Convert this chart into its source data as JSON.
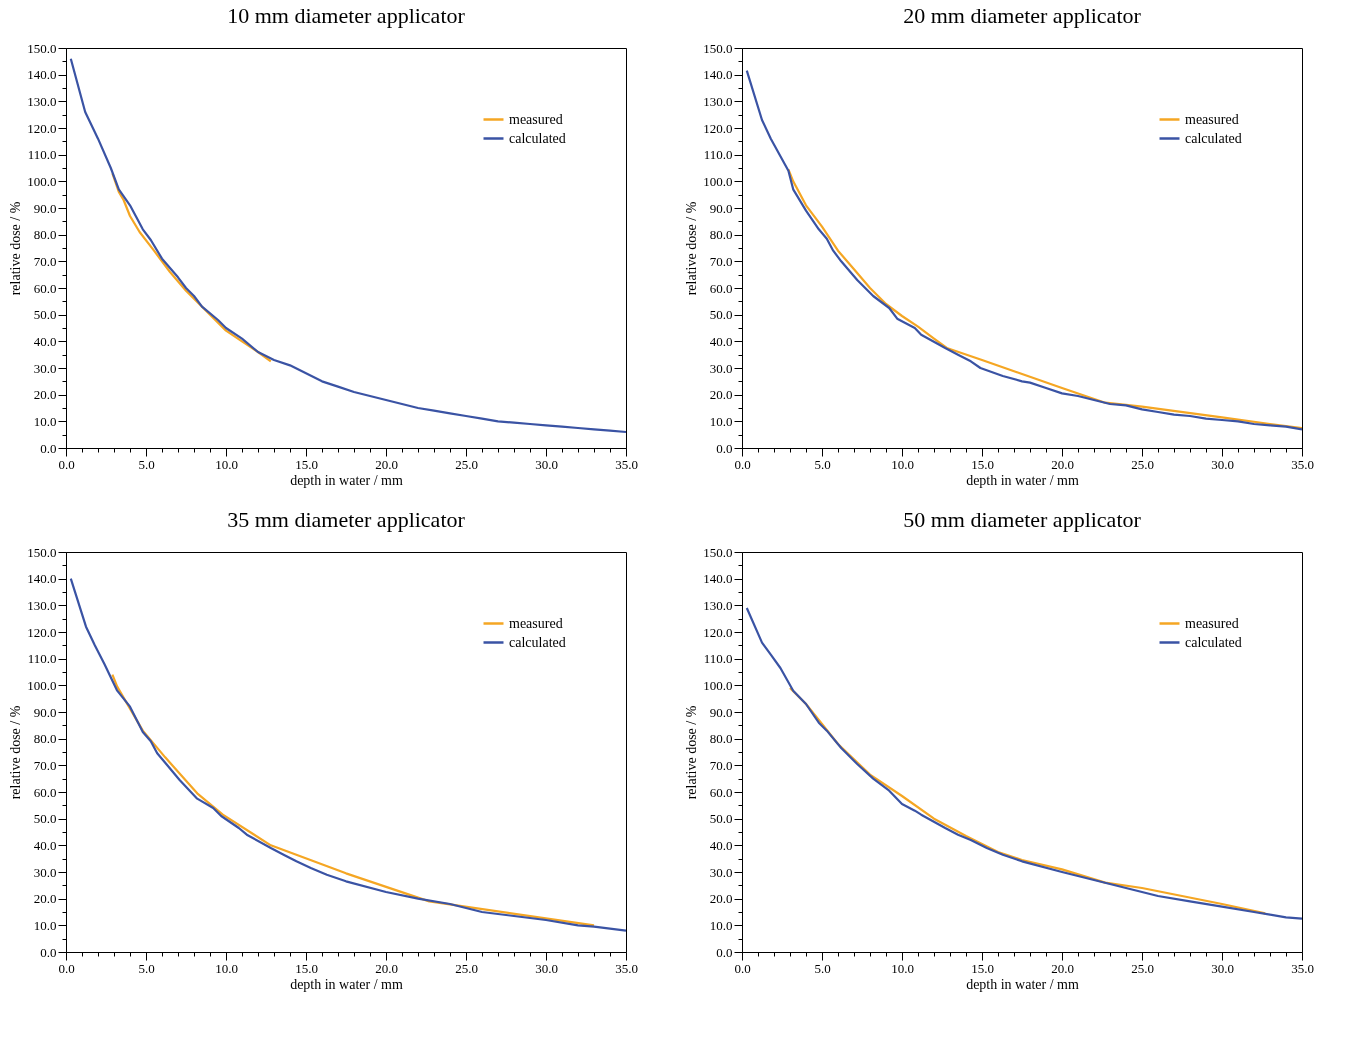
{
  "chart_data": [
    {
      "type": "line",
      "title": "10 mm diameter applicator",
      "xlabel": "depth in water / mm",
      "ylabel": "relative dose / %",
      "xlim": [
        0,
        35
      ],
      "ylim": [
        0,
        150
      ],
      "grid": false,
      "legend": "top right",
      "xticks": [
        {
          "value": 0,
          "label": "0.0"
        },
        {
          "value": 1,
          "label": null
        },
        {
          "value": 2,
          "label": null
        },
        {
          "value": 3,
          "label": null
        },
        {
          "value": 4,
          "label": null
        },
        {
          "value": 5,
          "label": "5.0"
        },
        {
          "value": 6,
          "label": null
        },
        {
          "value": 7,
          "label": null
        },
        {
          "value": 8,
          "label": null
        },
        {
          "value": 9,
          "label": null
        },
        {
          "value": 10,
          "label": "10.0"
        },
        {
          "value": 11,
          "label": null
        },
        {
          "value": 12,
          "label": null
        },
        {
          "value": 13,
          "label": null
        },
        {
          "value": 14,
          "label": null
        },
        {
          "value": 15,
          "label": "15.0"
        },
        {
          "value": 16,
          "label": null
        },
        {
          "value": 17,
          "label": null
        },
        {
          "value": 18,
          "label": null
        },
        {
          "value": 19,
          "label": null
        },
        {
          "value": 20,
          "label": "20.0"
        },
        {
          "value": 21,
          "label": null
        },
        {
          "value": 22,
          "label": null
        },
        {
          "value": 23,
          "label": null
        },
        {
          "value": 24,
          "label": null
        },
        {
          "value": 25,
          "label": "25.0"
        },
        {
          "value": 26,
          "label": null
        },
        {
          "value": 27,
          "label": null
        },
        {
          "value": 28,
          "label": null
        },
        {
          "value": 29,
          "label": null
        },
        {
          "value": 30,
          "label": "30.0"
        },
        {
          "value": 31,
          "label": null
        },
        {
          "value": 32,
          "label": null
        },
        {
          "value": 33,
          "label": null
        },
        {
          "value": 34,
          "label": null
        },
        {
          "value": 35,
          "label": "35.0"
        }
      ],
      "yticks": [
        {
          "value": 0,
          "label": "0.0"
        },
        {
          "value": 5,
          "label": null
        },
        {
          "value": 10,
          "label": "10.0"
        },
        {
          "value": 15,
          "label": null
        },
        {
          "value": 20,
          "label": "20.0"
        },
        {
          "value": 25,
          "label": null
        },
        {
          "value": 30,
          "label": "30.0"
        },
        {
          "value": 35,
          "label": null
        },
        {
          "value": 40,
          "label": "40.0"
        },
        {
          "value": 45,
          "label": null
        },
        {
          "value": 50,
          "label": "50.0"
        },
        {
          "value": 55,
          "label": null
        },
        {
          "value": 60,
          "label": "60.0"
        },
        {
          "value": 65,
          "label": null
        },
        {
          "value": 70,
          "label": "70.0"
        },
        {
          "value": 75,
          "label": null
        },
        {
          "value": 80,
          "label": "80.0"
        },
        {
          "value": 85,
          "label": null
        },
        {
          "value": 90,
          "label": "90.0"
        },
        {
          "value": 95,
          "label": null
        },
        {
          "value": 100,
          "label": "100.0"
        },
        {
          "value": 105,
          "label": null
        },
        {
          "value": 110,
          "label": "110.0"
        },
        {
          "value": 115,
          "label": null
        },
        {
          "value": 120,
          "label": "120.0"
        },
        {
          "value": 125,
          "label": null
        },
        {
          "value": 130,
          "label": "130.0"
        },
        {
          "value": 135,
          "label": null
        },
        {
          "value": 140,
          "label": "140.0"
        },
        {
          "value": 145,
          "label": null
        },
        {
          "value": 150,
          "label": "150.0"
        }
      ],
      "series": [
        {
          "name": "measured",
          "color": "#f5a623",
          "x": [
            2.9,
            3.3,
            3.6,
            4,
            4.6,
            5.5,
            6.5,
            7.5,
            8.5,
            9.5,
            10,
            11,
            12,
            12.8
          ],
          "values": [
            103,
            96,
            93,
            87,
            81,
            74,
            66,
            59,
            53,
            47,
            44,
            40,
            36,
            32.5
          ]
        },
        {
          "name": "calculated",
          "color": "#3a53a4",
          "x": [
            0.3,
            1.2,
            2,
            2.8,
            3.3,
            4,
            4.8,
            5.3,
            6,
            7,
            7.5,
            8,
            8.5,
            9.5,
            10,
            11,
            12,
            13,
            14,
            15,
            16,
            17,
            18,
            19,
            20,
            21,
            22,
            23,
            24,
            25,
            26,
            27,
            28,
            29,
            30,
            31,
            32,
            33,
            34,
            35
          ],
          "values": [
            146,
            126,
            116,
            105,
            97,
            91,
            82,
            78,
            71,
            64,
            60,
            57,
            53,
            48,
            45,
            41,
            36,
            33,
            31,
            28,
            25,
            23,
            21,
            19.5,
            18,
            16.5,
            15,
            14,
            13,
            12,
            11,
            10,
            9.5,
            9,
            8.5,
            8,
            7.5,
            7,
            6.5,
            6
          ]
        }
      ]
    },
    {
      "type": "line",
      "title": "20 mm diameter applicator",
      "xlabel": "depth in water / mm",
      "ylabel": "relative dose / %",
      "xlim": [
        0,
        35
      ],
      "ylim": [
        0,
        150
      ],
      "grid": false,
      "legend": "top right",
      "xticks": [
        {
          "value": 0,
          "label": "0.0"
        },
        {
          "value": 1,
          "label": null
        },
        {
          "value": 2,
          "label": null
        },
        {
          "value": 3,
          "label": null
        },
        {
          "value": 4,
          "label": null
        },
        {
          "value": 5,
          "label": "5.0"
        },
        {
          "value": 6,
          "label": null
        },
        {
          "value": 7,
          "label": null
        },
        {
          "value": 8,
          "label": null
        },
        {
          "value": 9,
          "label": null
        },
        {
          "value": 10,
          "label": "10.0"
        },
        {
          "value": 11,
          "label": null
        },
        {
          "value": 12,
          "label": null
        },
        {
          "value": 13,
          "label": null
        },
        {
          "value": 14,
          "label": null
        },
        {
          "value": 15,
          "label": "15.0"
        },
        {
          "value": 16,
          "label": null
        },
        {
          "value": 17,
          "label": null
        },
        {
          "value": 18,
          "label": null
        },
        {
          "value": 19,
          "label": null
        },
        {
          "value": 20,
          "label": "20.0"
        },
        {
          "value": 21,
          "label": null
        },
        {
          "value": 22,
          "label": null
        },
        {
          "value": 23,
          "label": null
        },
        {
          "value": 24,
          "label": null
        },
        {
          "value": 25,
          "label": "25.0"
        },
        {
          "value": 26,
          "label": null
        },
        {
          "value": 27,
          "label": null
        },
        {
          "value": 28,
          "label": null
        },
        {
          "value": 29,
          "label": null
        },
        {
          "value": 30,
          "label": "30.0"
        },
        {
          "value": 31,
          "label": null
        },
        {
          "value": 32,
          "label": null
        },
        {
          "value": 33,
          "label": null
        },
        {
          "value": 34,
          "label": null
        },
        {
          "value": 35,
          "label": "35.0"
        }
      ],
      "yticks": [
        {
          "value": 0,
          "label": "0.0"
        },
        {
          "value": 5,
          "label": null
        },
        {
          "value": 10,
          "label": "10.0"
        },
        {
          "value": 15,
          "label": null
        },
        {
          "value": 20,
          "label": "20.0"
        },
        {
          "value": 25,
          "label": null
        },
        {
          "value": 30,
          "label": "30.0"
        },
        {
          "value": 35,
          "label": null
        },
        {
          "value": 40,
          "label": "40.0"
        },
        {
          "value": 45,
          "label": null
        },
        {
          "value": 50,
          "label": "50.0"
        },
        {
          "value": 55,
          "label": null
        },
        {
          "value": 60,
          "label": "60.0"
        },
        {
          "value": 65,
          "label": null
        },
        {
          "value": 70,
          "label": "70.0"
        },
        {
          "value": 75,
          "label": null
        },
        {
          "value": 80,
          "label": "80.0"
        },
        {
          "value": 85,
          "label": null
        },
        {
          "value": 90,
          "label": "90.0"
        },
        {
          "value": 95,
          "label": null
        },
        {
          "value": 100,
          "label": "100.0"
        },
        {
          "value": 105,
          "label": null
        },
        {
          "value": 110,
          "label": "110.0"
        },
        {
          "value": 115,
          "label": null
        },
        {
          "value": 120,
          "label": "120.0"
        },
        {
          "value": 125,
          "label": null
        },
        {
          "value": 130,
          "label": "130.0"
        },
        {
          "value": 135,
          "label": null
        },
        {
          "value": 140,
          "label": "140.0"
        },
        {
          "value": 145,
          "label": null
        },
        {
          "value": 150,
          "label": "150.0"
        }
      ],
      "series": [
        {
          "name": "measured",
          "color": "#f5a623",
          "x": [
            2.9,
            3.2,
            4,
            5,
            6,
            7,
            8,
            9,
            10,
            11,
            12,
            12.8,
            15,
            20,
            22.7,
            25,
            30,
            33,
            35
          ],
          "values": [
            104.5,
            100,
            91,
            83,
            74,
            67,
            60,
            54,
            49.5,
            45.5,
            41,
            37.5,
            33,
            22.5,
            17,
            15.5,
            11.5,
            9,
            7.5
          ]
        },
        {
          "name": "calculated",
          "color": "#3a53a4",
          "x": [
            0.3,
            1.25,
            1.8,
            2.9,
            3.2,
            4,
            4.8,
            5.3,
            5.7,
            6.2,
            7.2,
            8.2,
            9.2,
            9.7,
            10.8,
            11.2,
            12.7,
            13.5,
            14.3,
            14.9,
            16.3,
            17.5,
            18,
            19,
            20,
            21,
            22,
            23,
            24,
            25,
            26,
            27,
            28,
            29,
            30,
            31,
            32,
            33,
            34,
            35
          ],
          "values": [
            141.5,
            123,
            116,
            104,
            97,
            89,
            82,
            78.5,
            74,
            70,
            63,
            57,
            52.5,
            48.5,
            45,
            42.5,
            37.5,
            35,
            32.5,
            30,
            27,
            25,
            24.5,
            22.5,
            20.5,
            19.5,
            18,
            16.5,
            16,
            14.5,
            13.5,
            12.5,
            12,
            11,
            10.5,
            10,
            9,
            8.5,
            8,
            7
          ]
        }
      ]
    },
    {
      "type": "line",
      "title": "35 mm diameter applicator",
      "xlabel": "depth in water / mm",
      "ylabel": "relative dose / %",
      "xlim": [
        0,
        35
      ],
      "ylim": [
        0,
        150
      ],
      "grid": false,
      "legend": "top right",
      "xticks": [
        {
          "value": 0,
          "label": "0.0"
        },
        {
          "value": 1,
          "label": null
        },
        {
          "value": 2,
          "label": null
        },
        {
          "value": 3,
          "label": null
        },
        {
          "value": 4,
          "label": null
        },
        {
          "value": 5,
          "label": "5.0"
        },
        {
          "value": 6,
          "label": null
        },
        {
          "value": 7,
          "label": null
        },
        {
          "value": 8,
          "label": null
        },
        {
          "value": 9,
          "label": null
        },
        {
          "value": 10,
          "label": "10.0"
        },
        {
          "value": 11,
          "label": null
        },
        {
          "value": 12,
          "label": null
        },
        {
          "value": 13,
          "label": null
        },
        {
          "value": 14,
          "label": null
        },
        {
          "value": 15,
          "label": "15.0"
        },
        {
          "value": 16,
          "label": null
        },
        {
          "value": 17,
          "label": null
        },
        {
          "value": 18,
          "label": null
        },
        {
          "value": 19,
          "label": null
        },
        {
          "value": 20,
          "label": "20.0"
        },
        {
          "value": 21,
          "label": null
        },
        {
          "value": 22,
          "label": null
        },
        {
          "value": 23,
          "label": null
        },
        {
          "value": 24,
          "label": null
        },
        {
          "value": 25,
          "label": "25.0"
        },
        {
          "value": 26,
          "label": null
        },
        {
          "value": 27,
          "label": null
        },
        {
          "value": 28,
          "label": null
        },
        {
          "value": 29,
          "label": null
        },
        {
          "value": 30,
          "label": "30.0"
        },
        {
          "value": 31,
          "label": null
        },
        {
          "value": 32,
          "label": null
        },
        {
          "value": 33,
          "label": null
        },
        {
          "value": 34,
          "label": null
        },
        {
          "value": 35,
          "label": "35.0"
        }
      ],
      "yticks": [
        {
          "value": 0,
          "label": "0.0"
        },
        {
          "value": 5,
          "label": null
        },
        {
          "value": 10,
          "label": "10.0"
        },
        {
          "value": 15,
          "label": null
        },
        {
          "value": 20,
          "label": "20.0"
        },
        {
          "value": 25,
          "label": null
        },
        {
          "value": 30,
          "label": "30.0"
        },
        {
          "value": 35,
          "label": null
        },
        {
          "value": 40,
          "label": "40.0"
        },
        {
          "value": 45,
          "label": null
        },
        {
          "value": 50,
          "label": "50.0"
        },
        {
          "value": 55,
          "label": null
        },
        {
          "value": 60,
          "label": "60.0"
        },
        {
          "value": 65,
          "label": null
        },
        {
          "value": 70,
          "label": "70.0"
        },
        {
          "value": 75,
          "label": null
        },
        {
          "value": 80,
          "label": "80.0"
        },
        {
          "value": 85,
          "label": null
        },
        {
          "value": 90,
          "label": "90.0"
        },
        {
          "value": 95,
          "label": null
        },
        {
          "value": 100,
          "label": "100.0"
        },
        {
          "value": 105,
          "label": null
        },
        {
          "value": 110,
          "label": "110.0"
        },
        {
          "value": 115,
          "label": null
        },
        {
          "value": 120,
          "label": "120.0"
        },
        {
          "value": 125,
          "label": null
        },
        {
          "value": 130,
          "label": "130.0"
        },
        {
          "value": 135,
          "label": null
        },
        {
          "value": 140,
          "label": "140.0"
        },
        {
          "value": 145,
          "label": null
        },
        {
          "value": 150,
          "label": "150.0"
        }
      ],
      "series": [
        {
          "name": "measured",
          "color": "#f5a623",
          "x": [
            2.9,
            3.2,
            4.8,
            6.2,
            8.2,
            9.8,
            12.8,
            17.5,
            22.7,
            33
          ],
          "values": [
            104,
            99.5,
            83,
            73,
            59.5,
            51.5,
            40,
            29.5,
            19,
            10
          ]
        },
        {
          "name": "calculated",
          "color": "#3a53a4",
          "x": [
            0.3,
            1.25,
            1.8,
            2.4,
            3.2,
            4,
            4.8,
            5.3,
            5.7,
            6.2,
            7.1,
            8.2,
            9.2,
            9.7,
            10.8,
            11.3,
            12.8,
            13.6,
            14.4,
            15.3,
            16.3,
            17.5,
            20,
            22,
            24,
            25,
            26,
            28,
            30,
            32,
            33,
            35
          ],
          "values": [
            140,
            122,
            115,
            108,
            98,
            92,
            82.5,
            79,
            74.5,
            71,
            64.5,
            57.5,
            54,
            51,
            46.5,
            44,
            39,
            36.5,
            34,
            31.5,
            29,
            26.5,
            22.5,
            20,
            18,
            16.5,
            15,
            13.5,
            12,
            10,
            9.5,
            8
          ]
        }
      ]
    },
    {
      "type": "line",
      "title": "50 mm diameter applicator",
      "xlabel": "depth in water / mm",
      "ylabel": "relative dose / %",
      "xlim": [
        0,
        35
      ],
      "ylim": [
        0,
        150
      ],
      "grid": false,
      "legend": "top right",
      "xticks": [
        {
          "value": 0,
          "label": "0.0"
        },
        {
          "value": 1,
          "label": null
        },
        {
          "value": 2,
          "label": null
        },
        {
          "value": 3,
          "label": null
        },
        {
          "value": 4,
          "label": null
        },
        {
          "value": 5,
          "label": "5.0"
        },
        {
          "value": 6,
          "label": null
        },
        {
          "value": 7,
          "label": null
        },
        {
          "value": 8,
          "label": null
        },
        {
          "value": 9,
          "label": null
        },
        {
          "value": 10,
          "label": "10.0"
        },
        {
          "value": 11,
          "label": null
        },
        {
          "value": 12,
          "label": null
        },
        {
          "value": 13,
          "label": null
        },
        {
          "value": 14,
          "label": null
        },
        {
          "value": 15,
          "label": "15.0"
        },
        {
          "value": 16,
          "label": null
        },
        {
          "value": 17,
          "label": null
        },
        {
          "value": 18,
          "label": null
        },
        {
          "value": 19,
          "label": null
        },
        {
          "value": 20,
          "label": "20.0"
        },
        {
          "value": 21,
          "label": null
        },
        {
          "value": 22,
          "label": null
        },
        {
          "value": 23,
          "label": null
        },
        {
          "value": 24,
          "label": null
        },
        {
          "value": 25,
          "label": "25.0"
        },
        {
          "value": 26,
          "label": null
        },
        {
          "value": 27,
          "label": null
        },
        {
          "value": 28,
          "label": null
        },
        {
          "value": 29,
          "label": null
        },
        {
          "value": 30,
          "label": "30.0"
        },
        {
          "value": 31,
          "label": null
        },
        {
          "value": 32,
          "label": null
        },
        {
          "value": 33,
          "label": null
        },
        {
          "value": 34,
          "label": null
        },
        {
          "value": 35,
          "label": "35.0"
        }
      ],
      "yticks": [
        {
          "value": 0,
          "label": "0.0"
        },
        {
          "value": 5,
          "label": null
        },
        {
          "value": 10,
          "label": "10.0"
        },
        {
          "value": 15,
          "label": null
        },
        {
          "value": 20,
          "label": "20.0"
        },
        {
          "value": 25,
          "label": null
        },
        {
          "value": 30,
          "label": "30.0"
        },
        {
          "value": 35,
          "label": null
        },
        {
          "value": 40,
          "label": "40.0"
        },
        {
          "value": 45,
          "label": null
        },
        {
          "value": 50,
          "label": "50.0"
        },
        {
          "value": 55,
          "label": null
        },
        {
          "value": 60,
          "label": "60.0"
        },
        {
          "value": 65,
          "label": null
        },
        {
          "value": 70,
          "label": "70.0"
        },
        {
          "value": 75,
          "label": null
        },
        {
          "value": 80,
          "label": "80.0"
        },
        {
          "value": 85,
          "label": null
        },
        {
          "value": 90,
          "label": "90.0"
        },
        {
          "value": 95,
          "label": null
        },
        {
          "value": 100,
          "label": "100.0"
        },
        {
          "value": 105,
          "label": null
        },
        {
          "value": 110,
          "label": "110.0"
        },
        {
          "value": 115,
          "label": null
        },
        {
          "value": 120,
          "label": "120.0"
        },
        {
          "value": 125,
          "label": null
        },
        {
          "value": 130,
          "label": "130.0"
        },
        {
          "value": 135,
          "label": null
        },
        {
          "value": 140,
          "label": "140.0"
        },
        {
          "value": 145,
          "label": null
        },
        {
          "value": 150,
          "label": "150.0"
        }
      ],
      "series": [
        {
          "name": "measured",
          "color": "#f5a623",
          "x": [
            3,
            4,
            5,
            6,
            8,
            10,
            12,
            14,
            16,
            17.5,
            20,
            22.7,
            25,
            30,
            32.7
          ],
          "values": [
            99,
            93,
            85.5,
            78,
            66.5,
            58.5,
            50,
            43.5,
            37.5,
            34.5,
            31,
            26,
            24,
            18,
            14.5
          ]
        },
        {
          "name": "calculated",
          "color": "#3a53a4",
          "x": [
            0.3,
            1.25,
            1.8,
            2.4,
            3.2,
            4,
            4.8,
            5.3,
            6.2,
            7.2,
            8.2,
            9.2,
            10,
            10.8,
            11.2,
            12.7,
            13.5,
            14.3,
            15.3,
            16.3,
            17.5,
            20,
            22,
            24,
            25,
            26,
            28,
            30,
            32,
            33,
            34,
            35
          ],
          "values": [
            129,
            116,
            111.5,
            106.5,
            98,
            93,
            86,
            83,
            76.5,
            70.5,
            65,
            60.5,
            55.5,
            53,
            51.5,
            46.5,
            44,
            42,
            39,
            36.5,
            34,
            30,
            27,
            24,
            22.5,
            21,
            19,
            17,
            15,
            14,
            13,
            12.5
          ]
        }
      ]
    }
  ]
}
